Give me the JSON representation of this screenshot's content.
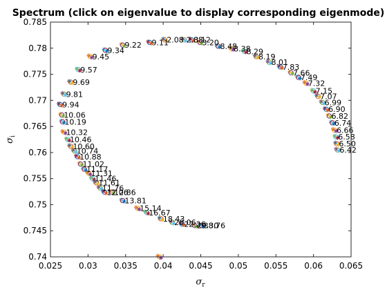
{
  "chart_data": {
    "type": "scatter",
    "title": "Spectrum (click on eigenvalue to display corresponding eigenmode)",
    "xlabel": "σ",
    "xlabel_sub": "r",
    "ylabel": "σ",
    "ylabel_sub": "i",
    "xlim": [
      0.025,
      0.065
    ],
    "ylim": [
      0.74,
      0.785
    ],
    "x_ticks": [
      "0.025",
      "0.03",
      "0.035",
      "0.04",
      "0.045",
      "0.05",
      "0.055",
      "0.06",
      "0.065"
    ],
    "y_ticks": [
      "0.74",
      "0.745",
      "0.75",
      "0.755",
      "0.76",
      "0.765",
      "0.77",
      "0.775",
      "0.78",
      "0.785"
    ],
    "grid": false,
    "marker_colors": [
      "#0072bd",
      "#d95319",
      "#edb120",
      "#7e2f8e",
      "#77ac30",
      "#4dbeee",
      "#a2142f"
    ],
    "series": [
      {
        "points": [
          {
            "x": 0.0402,
            "y": 0.7816,
            "label": "2.08"
          },
          {
            "x": 0.0428,
            "y": 0.7816,
            "label": "2.88"
          },
          {
            "x": 0.0438,
            "y": 0.7816,
            "label": "3.12"
          },
          {
            "x": 0.0449,
            "y": 0.7811,
            "label": "3.20"
          },
          {
            "x": 0.0473,
            "y": 0.7804,
            "label": "8.48"
          },
          {
            "x": 0.0491,
            "y": 0.7799,
            "label": "8.38"
          },
          {
            "x": 0.0508,
            "y": 0.7794,
            "label": "8.29"
          },
          {
            "x": 0.0524,
            "y": 0.7784,
            "label": "8.19"
          },
          {
            "x": 0.0541,
            "y": 0.7773,
            "label": "8.01"
          },
          {
            "x": 0.0556,
            "y": 0.7764,
            "label": "7.83"
          },
          {
            "x": 0.057,
            "y": 0.7753,
            "label": "7.66"
          },
          {
            "x": 0.058,
            "y": 0.7744,
            "label": "7.49"
          },
          {
            "x": 0.059,
            "y": 0.7733,
            "label": "7.32"
          },
          {
            "x": 0.06,
            "y": 0.7718,
            "label": "7.15"
          },
          {
            "x": 0.0606,
            "y": 0.7708,
            "label": "7.07"
          },
          {
            "x": 0.0612,
            "y": 0.7696,
            "label": "6.99"
          },
          {
            "x": 0.0617,
            "y": 0.7683,
            "label": "6.90"
          },
          {
            "x": 0.0621,
            "y": 0.767,
            "label": "6.82"
          },
          {
            "x": 0.0625,
            "y": 0.7657,
            "label": "6.74"
          },
          {
            "x": 0.0628,
            "y": 0.7643,
            "label": "6.66"
          },
          {
            "x": 0.063,
            "y": 0.763,
            "label": "6.58"
          },
          {
            "x": 0.0631,
            "y": 0.7617,
            "label": "6.50"
          },
          {
            "x": 0.0632,
            "y": 0.7605,
            "label": "6.42"
          },
          {
            "x": 0.0382,
            "y": 0.7811,
            "label": "9.11"
          },
          {
            "x": 0.0346,
            "y": 0.7806,
            "label": "9.22"
          },
          {
            "x": 0.0323,
            "y": 0.7796,
            "label": "9.34"
          },
          {
            "x": 0.0303,
            "y": 0.7784,
            "label": "9.45"
          },
          {
            "x": 0.0287,
            "y": 0.7759,
            "label": "9.57"
          },
          {
            "x": 0.0277,
            "y": 0.7735,
            "label": "9.69"
          },
          {
            "x": 0.0268,
            "y": 0.7712,
            "label": "9.81"
          },
          {
            "x": 0.0263,
            "y": 0.7692,
            "label": "9.94"
          },
          {
            "x": 0.0265,
            "y": 0.7672,
            "label": "10.06"
          },
          {
            "x": 0.0266,
            "y": 0.7659,
            "label": "10.19"
          },
          {
            "x": 0.0268,
            "y": 0.7639,
            "label": "10.32"
          },
          {
            "x": 0.0273,
            "y": 0.7625,
            "label": "10.46"
          },
          {
            "x": 0.0277,
            "y": 0.7612,
            "label": "10.60"
          },
          {
            "x": 0.0282,
            "y": 0.7603,
            "label": "10.74"
          },
          {
            "x": 0.0286,
            "y": 0.7592,
            "label": "10.88"
          },
          {
            "x": 0.029,
            "y": 0.7578,
            "label": "11.02"
          },
          {
            "x": 0.0295,
            "y": 0.7568,
            "label": "11.17"
          },
          {
            "x": 0.0301,
            "y": 0.756,
            "label": "11.31"
          },
          {
            "x": 0.0306,
            "y": 0.755,
            "label": "11.46"
          },
          {
            "x": 0.0311,
            "y": 0.7542,
            "label": "11.61"
          },
          {
            "x": 0.0316,
            "y": 0.7532,
            "label": "11.76"
          },
          {
            "x": 0.0322,
            "y": 0.7524,
            "label": "12.06"
          },
          {
            "x": 0.0332,
            "y": 0.7524,
            "label": "12.86"
          },
          {
            "x": 0.0346,
            "y": 0.7508,
            "label": "13.81"
          },
          {
            "x": 0.0366,
            "y": 0.7493,
            "label": "15.14"
          },
          {
            "x": 0.0378,
            "y": 0.7485,
            "label": "16.67"
          },
          {
            "x": 0.0397,
            "y": 0.7473,
            "label": "18.43"
          },
          {
            "x": 0.0412,
            "y": 0.7466,
            "label": "20.06"
          },
          {
            "x": 0.0425,
            "y": 0.7463,
            "label": "22.26"
          },
          {
            "x": 0.0442,
            "y": 0.746,
            "label": "29.30"
          },
          {
            "x": 0.0451,
            "y": 0.746,
            "label": "38.76"
          },
          {
            "x": 0.0395,
            "y": 0.74,
            "label": ""
          }
        ]
      }
    ]
  }
}
